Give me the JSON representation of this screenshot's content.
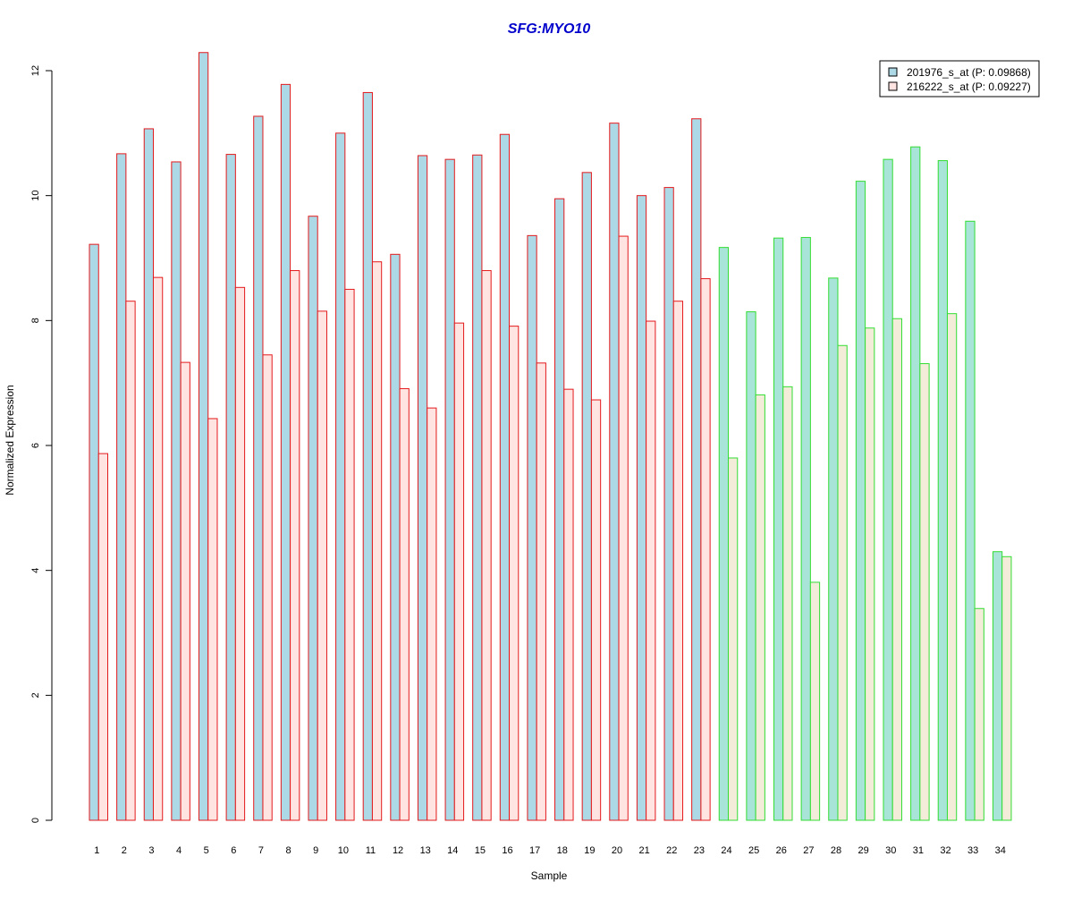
{
  "chart_data": {
    "type": "bar",
    "title": "SFG:MYO10",
    "xlabel": "Sample",
    "ylabel": "Normalized Expression",
    "categories": [
      "1",
      "2",
      "3",
      "4",
      "5",
      "6",
      "7",
      "8",
      "9",
      "10",
      "11",
      "12",
      "13",
      "14",
      "15",
      "16",
      "17",
      "18",
      "19",
      "20",
      "21",
      "22",
      "23",
      "24",
      "25",
      "26",
      "27",
      "28",
      "29",
      "30",
      "31",
      "32",
      "33",
      "34"
    ],
    "ylim": [
      0,
      12.3
    ],
    "yticks": [
      0,
      2,
      4,
      6,
      8,
      10,
      12
    ],
    "grid": false,
    "legend_position": "top-right",
    "group_split_after": 23,
    "series": [
      {
        "name": "201976_s_at (P: 0.09868)",
        "values": [
          9.22,
          10.67,
          11.07,
          10.54,
          12.29,
          10.66,
          11.27,
          11.78,
          9.67,
          11.0,
          11.65,
          9.06,
          10.64,
          10.58,
          10.65,
          10.98,
          9.36,
          9.95,
          10.37,
          11.16,
          10.0,
          10.13,
          11.23,
          9.17,
          8.14,
          9.32,
          9.33,
          8.68,
          10.23,
          10.58,
          10.78,
          10.56,
          9.59,
          4.3
        ]
      },
      {
        "name": "216222_s_at (P: 0.09227)",
        "values": [
          5.87,
          8.31,
          8.69,
          7.33,
          6.43,
          8.53,
          7.45,
          8.8,
          8.15,
          8.5,
          8.94,
          6.91,
          6.6,
          7.96,
          8.8,
          7.91,
          7.32,
          6.9,
          6.73,
          9.35,
          7.99,
          8.31,
          8.67,
          5.8,
          6.81,
          6.94,
          3.81,
          7.6,
          7.88,
          8.03,
          7.31,
          8.11,
          3.39,
          4.22
        ]
      }
    ],
    "colors": {
      "series1_fill": "#add8e6",
      "series2_fill": "#ffe4e1",
      "series1_fill_group2": "#a8e4d8",
      "series2_fill_group2": "#f2ecd9",
      "group1_border": "#e31a1c",
      "group2_border": "#33dd33",
      "title": "#0000cc",
      "axis": "#000000"
    }
  }
}
